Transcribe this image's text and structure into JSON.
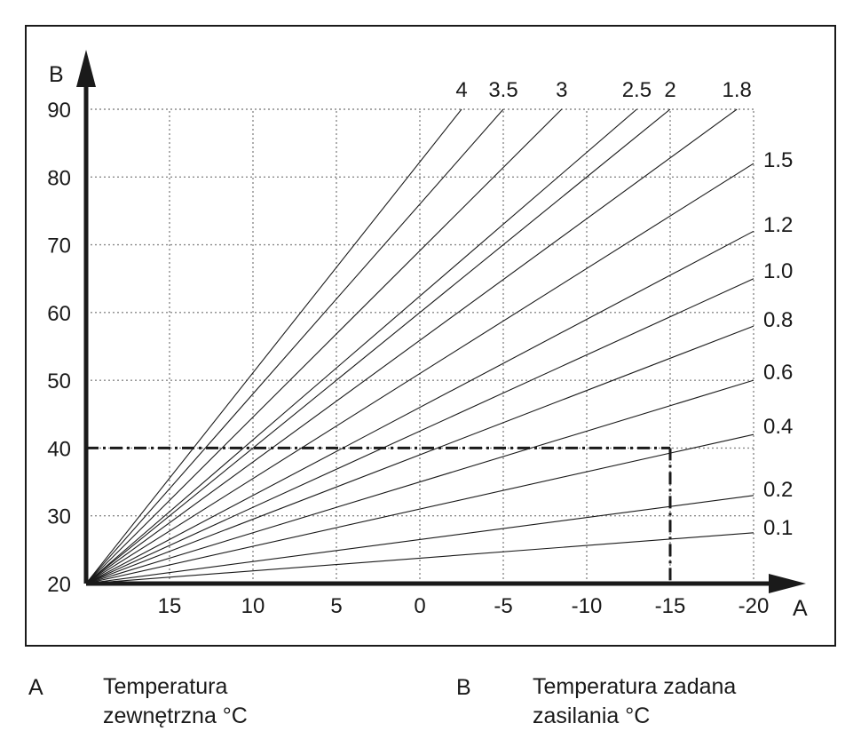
{
  "chart_data": {
    "type": "line",
    "title": "",
    "xlabel": "A",
    "ylabel": "B",
    "x_ticks": [
      15,
      10,
      5,
      0,
      -5,
      -10,
      -15,
      -20
    ],
    "y_ticks": [
      20,
      30,
      40,
      50,
      60,
      70,
      80,
      90
    ],
    "xlim": [
      20,
      -20
    ],
    "ylim": [
      20,
      90
    ],
    "grid": true,
    "origin": {
      "x": 20,
      "y": 20
    },
    "series": [
      {
        "name": "4",
        "end": {
          "x": -2.5,
          "y": 90
        }
      },
      {
        "name": "3.5",
        "end": {
          "x": -5,
          "y": 90
        }
      },
      {
        "name": "3",
        "end": {
          "x": -8.5,
          "y": 90
        }
      },
      {
        "name": "2.5",
        "end": {
          "x": -13,
          "y": 90
        }
      },
      {
        "name": "2",
        "end": {
          "x": -15,
          "y": 90
        }
      },
      {
        "name": "1.8",
        "end": {
          "x": -19,
          "y": 90
        }
      },
      {
        "name": "1.5",
        "end": {
          "x": -20,
          "y": 82
        }
      },
      {
        "name": "1.2",
        "end": {
          "x": -20,
          "y": 72
        }
      },
      {
        "name": "1.0",
        "end": {
          "x": -20,
          "y": 65
        }
      },
      {
        "name": "0.8",
        "end": {
          "x": -20,
          "y": 58
        }
      },
      {
        "name": "0.6",
        "end": {
          "x": -20,
          "y": 50
        }
      },
      {
        "name": "0.4",
        "end": {
          "x": -20,
          "y": 42
        }
      },
      {
        "name": "0.2",
        "end": {
          "x": -20,
          "y": 33
        }
      },
      {
        "name": "0.1",
        "end": {
          "x": -20,
          "y": 27.5
        }
      }
    ],
    "example": {
      "x": -15,
      "y": 40
    },
    "top_labels": [
      "4",
      "3.5",
      "3",
      "2.5",
      "2",
      "1.8"
    ],
    "right_labels": [
      "1.5",
      "1.2",
      "1.0",
      "0.8",
      "0.6",
      "0.4",
      "0.2",
      "0.1"
    ]
  },
  "legend": {
    "a_letter": "A",
    "a_text_line1": "Temperatura",
    "a_text_line2": "zewnętrzna °C",
    "b_letter": "B",
    "b_text_line1": "Temperatura zadana",
    "b_text_line2": "zasilania °C"
  },
  "colors": {
    "ink": "#1a1a1a",
    "grid": "#8a8a8a"
  }
}
